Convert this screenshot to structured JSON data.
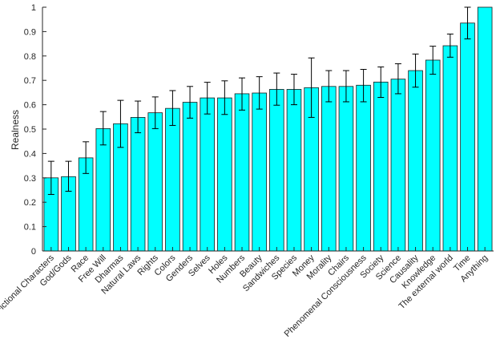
{
  "chart_data": {
    "type": "bar",
    "title": "",
    "xlabel": "",
    "ylabel": "Realness",
    "ylim": [
      0,
      1
    ],
    "yticks": [
      "0",
      "0.1",
      "0.2",
      "0.3",
      "0.4",
      "0.5",
      "0.6",
      "0.7",
      "0.8",
      "0.9",
      "1"
    ],
    "grid": false,
    "bar_color": "#00ffff",
    "categories": [
      "Fictional Characters",
      "God/Gods",
      "Race",
      "Free Will",
      "Dharmas",
      "Natural Laws",
      "Rights",
      "Colors",
      "Genders",
      "Selves",
      "Holes",
      "Numbers",
      "Beauty",
      "Sandwiches",
      "Species",
      "Money",
      "Morality",
      "Chairs",
      "Phenomenal Consciousness",
      "Society",
      "Science",
      "Causality",
      "Knowledge",
      "The external world",
      "Time",
      "Anything"
    ],
    "values": [
      0.3,
      0.305,
      0.382,
      0.502,
      0.522,
      0.548,
      0.567,
      0.585,
      0.61,
      0.628,
      0.628,
      0.645,
      0.648,
      0.663,
      0.663,
      0.67,
      0.675,
      0.675,
      0.68,
      0.693,
      0.705,
      0.74,
      0.783,
      0.842,
      0.935,
      1.0
    ],
    "error_low": [
      0.232,
      0.245,
      0.318,
      0.435,
      0.425,
      0.485,
      0.502,
      0.515,
      0.545,
      0.562,
      0.56,
      0.578,
      0.582,
      0.598,
      0.6,
      0.548,
      0.612,
      0.612,
      0.612,
      0.63,
      0.645,
      0.672,
      0.725,
      0.795,
      0.87,
      1.0
    ],
    "error_high": [
      0.368,
      0.368,
      0.448,
      0.572,
      0.618,
      0.615,
      0.632,
      0.658,
      0.675,
      0.692,
      0.698,
      0.71,
      0.715,
      0.73,
      0.725,
      0.792,
      0.74,
      0.74,
      0.745,
      0.755,
      0.768,
      0.808,
      0.84,
      0.89,
      1.0,
      1.0
    ]
  }
}
